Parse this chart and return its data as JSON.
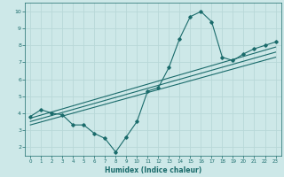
{
  "xlabel": "Humidex (Indice chaleur)",
  "bg_color": "#cde8e8",
  "grid_color": "#b8d8d8",
  "line_color": "#1a6b6b",
  "xlim": [
    -0.5,
    23.5
  ],
  "ylim": [
    1.5,
    10.5
  ],
  "xticks": [
    0,
    1,
    2,
    3,
    4,
    5,
    6,
    7,
    8,
    9,
    10,
    11,
    12,
    13,
    14,
    15,
    16,
    17,
    18,
    19,
    20,
    21,
    22,
    23
  ],
  "yticks": [
    2,
    3,
    4,
    5,
    6,
    7,
    8,
    9,
    10
  ],
  "main_x": [
    0,
    1,
    2,
    3,
    4,
    5,
    6,
    7,
    8,
    9,
    10,
    11,
    12,
    13,
    14,
    15,
    16,
    17,
    18,
    19,
    20,
    21,
    22,
    23
  ],
  "main_y": [
    3.8,
    4.2,
    4.0,
    3.9,
    3.3,
    3.3,
    2.8,
    2.5,
    1.7,
    2.6,
    3.5,
    5.3,
    5.5,
    6.7,
    8.4,
    9.7,
    10.0,
    9.4,
    7.3,
    7.1,
    7.5,
    7.8,
    8.0,
    8.2
  ],
  "trend1_x": [
    0,
    23
  ],
  "trend1_y": [
    3.7,
    7.9
  ],
  "trend2_x": [
    0,
    23
  ],
  "trend2_y": [
    3.5,
    7.6
  ],
  "trend3_x": [
    0,
    23
  ],
  "trend3_y": [
    3.3,
    7.3
  ]
}
